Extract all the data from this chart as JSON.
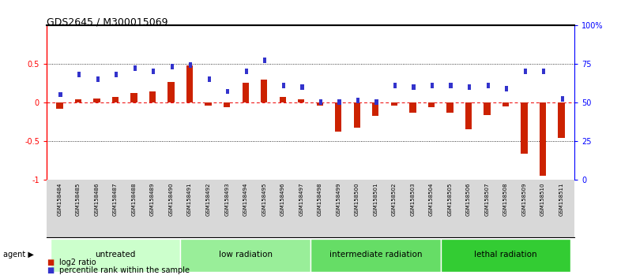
{
  "title": "GDS2645 / M300015069",
  "samples": [
    "GSM158484",
    "GSM158485",
    "GSM158486",
    "GSM158487",
    "GSM158488",
    "GSM158489",
    "GSM158490",
    "GSM158491",
    "GSM158492",
    "GSM158493",
    "GSM158494",
    "GSM158495",
    "GSM158496",
    "GSM158497",
    "GSM158498",
    "GSM158499",
    "GSM158500",
    "GSM158501",
    "GSM158502",
    "GSM158503",
    "GSM158504",
    "GSM158505",
    "GSM158506",
    "GSM158507",
    "GSM158508",
    "GSM158509",
    "GSM158510",
    "GSM158511"
  ],
  "log2_ratio": [
    -0.08,
    0.04,
    0.05,
    0.07,
    0.12,
    0.14,
    0.26,
    0.48,
    -0.04,
    -0.06,
    0.25,
    0.29,
    0.07,
    0.04,
    -0.04,
    -0.38,
    -0.33,
    -0.18,
    -0.04,
    -0.14,
    -0.06,
    -0.14,
    -0.35,
    -0.17,
    -0.05,
    -0.67,
    -0.95,
    -0.46
  ],
  "percentile_rank_pct": [
    55,
    68,
    65,
    68,
    72,
    70,
    73,
    74,
    65,
    57,
    70,
    77,
    61,
    60,
    50,
    50,
    51,
    50,
    61,
    60,
    61,
    61,
    60,
    61,
    59,
    70,
    70,
    52
  ],
  "groups": [
    {
      "label": "untreated",
      "start": 0,
      "end": 7,
      "color": "#ccffcc"
    },
    {
      "label": "low radiation",
      "start": 7,
      "end": 14,
      "color": "#99ee99"
    },
    {
      "label": "intermediate radiation",
      "start": 14,
      "end": 21,
      "color": "#66dd66"
    },
    {
      "label": "lethal radiation",
      "start": 21,
      "end": 28,
      "color": "#33cc33"
    }
  ],
  "bar_color_red": "#cc2200",
  "bar_color_blue": "#3333cc",
  "background": "#ffffff",
  "ylim_left": [
    -1.0,
    1.0
  ],
  "ylim_right": [
    0,
    100
  ],
  "yticks_left": [
    -1.0,
    -0.5,
    0.0,
    0.5
  ],
  "ytick_labels_left": [
    "-1",
    "-0.5",
    "0",
    "0.5"
  ],
  "yticks_right": [
    0,
    25,
    50,
    75,
    100
  ],
  "ytick_labels_right": [
    "0",
    "25",
    "50",
    "75",
    "100%"
  ],
  "hline_color": "#ee0000",
  "dotted_line_color": "#000000"
}
